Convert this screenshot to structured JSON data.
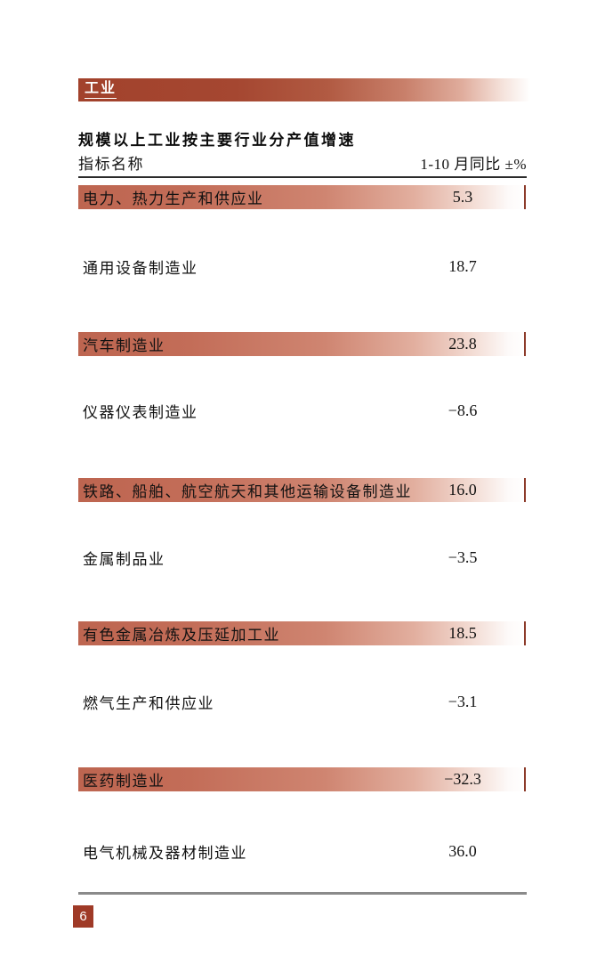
{
  "section": {
    "header": "工业"
  },
  "table": {
    "title": "规模以上工业按主要行业分产值增速",
    "columns": {
      "name": "指标名称",
      "period": "1-10 月同比 ±%"
    },
    "rows": [
      {
        "label": "电力、热力生产和供应业",
        "value": "5.3",
        "highlighted": true
      },
      {
        "label": "通用设备制造业",
        "value": "18.7",
        "highlighted": false
      },
      {
        "label": "汽车制造业",
        "value": "23.8",
        "highlighted": true
      },
      {
        "label": "仪器仪表制造业",
        "value": "−8.6",
        "highlighted": false
      },
      {
        "label": "铁路、船舶、航空航天和其他运输设备制造业",
        "value": "16.0",
        "highlighted": true
      },
      {
        "label": "金属制品业",
        "value": "−3.5",
        "highlighted": false
      },
      {
        "label": "有色金属冶炼及压延加工业",
        "value": "18.5",
        "highlighted": true
      },
      {
        "label": "燃气生产和供应业",
        "value": "−3.1",
        "highlighted": false
      },
      {
        "label": "医药制造业",
        "value": "−32.3",
        "highlighted": true
      },
      {
        "label": "电气机械及器材制造业",
        "value": "36.0",
        "highlighted": false
      }
    ]
  },
  "footer": {
    "page_number": "6"
  },
  "colors": {
    "section_bar_start": "#a2422c",
    "row_bar_start": "#bd6550",
    "row_tick": "#8c3b2a",
    "page_badge": "#9f3a27",
    "footer_rule": "#8a8a8a",
    "text": "#111111"
  }
}
